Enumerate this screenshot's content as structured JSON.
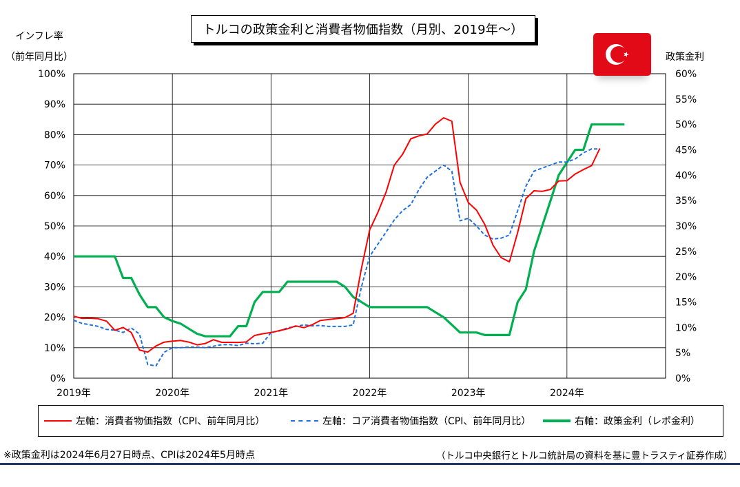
{
  "title": "トルコの政策金利と消費者物価指数（月別、2019年～）",
  "left_axis_label_line1": "インフレ率",
  "left_axis_label_line2": "（前年同月比）",
  "right_axis_label": "政策金利",
  "footnote_left": "※政策金利は2024年6月27日時点、CPIは2024年5月時点",
  "footnote_right": "（トルコ中央銀行とトルコ統計局の資料を基に豊トラスティ証券作成）",
  "flag": {
    "colors": {
      "red": "#e30a17",
      "white": "#ffffff"
    },
    "icon": "turkish-flag-icon"
  },
  "colors": {
    "cpi": "#ff0000",
    "core": "#1f6fe0",
    "rate": "#00b050"
  },
  "chart_data": {
    "type": "line",
    "x_start": "2019-01",
    "x_ticks": [
      "2019年",
      "2020年",
      "2021年",
      "2022年",
      "2023年",
      "2024年"
    ],
    "left_axis": {
      "range": [
        0,
        100
      ],
      "ticks": [
        "0%",
        "10%",
        "20%",
        "30%",
        "40%",
        "50%",
        "60%",
        "70%",
        "80%",
        "90%",
        "100%"
      ]
    },
    "right_axis": {
      "range": [
        0,
        60
      ],
      "ticks": [
        "0%",
        "5%",
        "10%",
        "15%",
        "20%",
        "25%",
        "30%",
        "35%",
        "40%",
        "45%",
        "50%",
        "55%",
        "60%"
      ]
    },
    "grid": true,
    "legend_position": "bottom",
    "series": [
      {
        "name": "左軸：消費者物価指数（CPI、前年同月比）",
        "axis": "left",
        "style": "solid",
        "color": "#ff0000",
        "values": [
          20.35,
          19.67,
          19.71,
          19.5,
          18.71,
          15.72,
          16.65,
          15.01,
          9.26,
          8.55,
          10.56,
          11.84,
          12.15,
          12.37,
          11.86,
          10.94,
          11.39,
          12.62,
          11.76,
          11.77,
          11.75,
          11.89,
          14.03,
          14.6,
          14.97,
          15.61,
          16.19,
          17.14,
          16.59,
          17.53,
          18.95,
          19.25,
          19.58,
          19.89,
          21.31,
          36.08,
          48.69,
          54.44,
          61.14,
          69.97,
          73.5,
          78.62,
          79.6,
          80.21,
          83.45,
          85.51,
          84.39,
          64.27,
          57.68,
          55.18,
          50.51,
          43.68,
          39.59,
          38.21,
          47.83,
          58.94,
          61.53,
          61.36,
          61.98,
          64.77,
          64.86,
          67.07,
          68.5,
          69.8,
          75.45
        ]
      },
      {
        "name": "左軸：コア消費者物価指数（CPI、前年同月比）",
        "axis": "left",
        "style": "dashed",
        "color": "#1f6fe0",
        "values": [
          19.0,
          18.0,
          17.5,
          17.0,
          16.0,
          15.8,
          15.0,
          16.5,
          14.5,
          4.5,
          4.0,
          8.5,
          10.0,
          10.0,
          10.2,
          10.2,
          10.0,
          10.5,
          11.0,
          11.0,
          10.7,
          11.5,
          11.3,
          11.5,
          15.0,
          15.5,
          16.5,
          17.0,
          17.5,
          17.2,
          17.3,
          17.0,
          17.0,
          17.0,
          17.5,
          30.0,
          40.0,
          44.0,
          48.0,
          52.0,
          55.0,
          57.0,
          62.0,
          66.0,
          68.0,
          70.0,
          68.0,
          51.7,
          52.5,
          50.0,
          47.0,
          45.7,
          46.0,
          47.0,
          55.0,
          63.0,
          68.0,
          69.0,
          70.0,
          71.0,
          71.0,
          72.0,
          74.0,
          75.3,
          75.3
        ]
      },
      {
        "name": "右軸：政策金利（レポ金利）",
        "axis": "right",
        "style": "solid",
        "color": "#00b050",
        "values": [
          24,
          24,
          24,
          24,
          24,
          24,
          19.75,
          19.75,
          16.5,
          14,
          14,
          12,
          11.25,
          10.75,
          9.75,
          8.75,
          8.25,
          8.25,
          8.25,
          8.25,
          10.25,
          10.25,
          15,
          17,
          17,
          17,
          19,
          19,
          19,
          19,
          19,
          19,
          19,
          18,
          16,
          15,
          14,
          14,
          14,
          14,
          14,
          14,
          14,
          14,
          13,
          12,
          10.5,
          9,
          9,
          9,
          8.5,
          8.5,
          8.5,
          8.5,
          15,
          17.5,
          25,
          30,
          35,
          40,
          42.5,
          45,
          45,
          50,
          50,
          50,
          50,
          50
        ]
      }
    ]
  },
  "legend": [
    {
      "label": "左軸：消費者物価指数（CPI、前年同月比）",
      "color": "#ff0000",
      "style": "solid"
    },
    {
      "label": "左軸：コア消費者物価指数（CPI、前年同月比）",
      "color": "#1f6fe0",
      "style": "dashed"
    },
    {
      "label": "右軸：政策金利（レポ金利）",
      "color": "#00b050",
      "style": "solid"
    }
  ]
}
